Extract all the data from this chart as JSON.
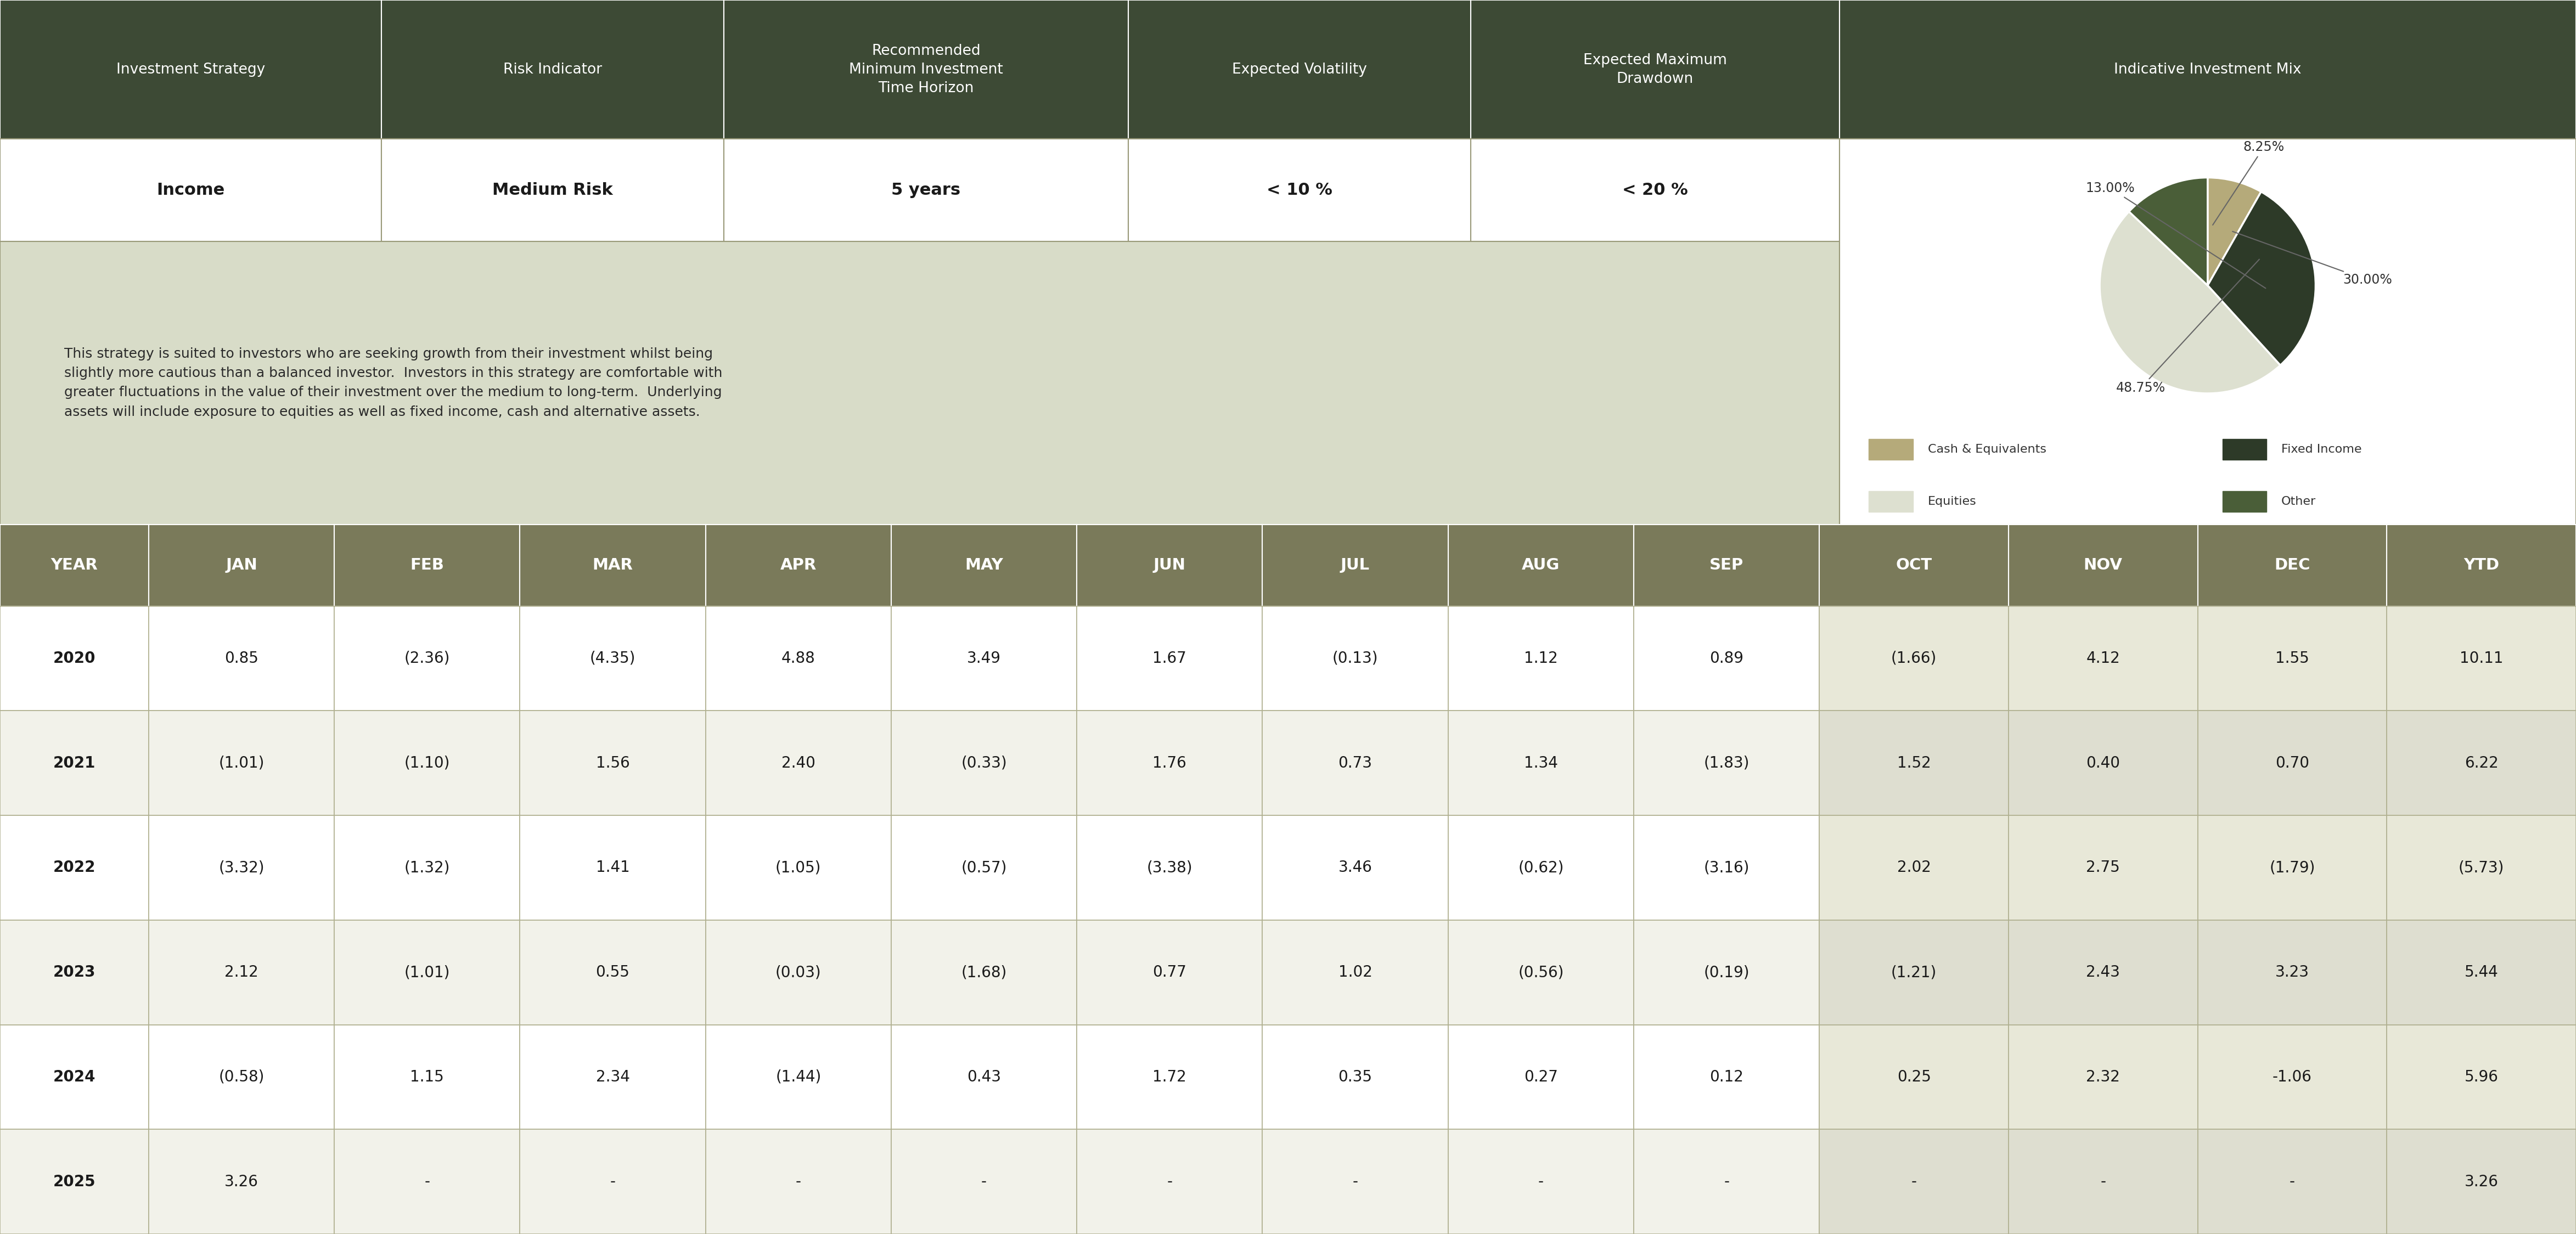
{
  "header_bg": "#3d4a35",
  "header_text_color": "#ffffff",
  "row_bg_white": "#ffffff",
  "desc_bg": "#d8dcc8",
  "border_color": "#9a9a7a",
  "header_row": [
    "Investment Strategy",
    "Risk Indicator",
    "Recommended\nMinimum Investment\nTime Horizon",
    "Expected Volatility",
    "Expected Maximum\nDrawdown",
    "Indicative Investment Mix"
  ],
  "info_row": [
    "Income",
    "Medium Risk",
    "5 years",
    "< 10 %",
    "< 20 %"
  ],
  "description": "This strategy is suited to investors who are seeking growth from their investment whilst being\nslightly more cautious than a balanced investor.  Investors in this strategy are comfortable with\ngreater fluctuations in the value of their investment over the medium to long-term.  Underlying\nassets will include exposure to equities as well as fixed income, cash and alternative assets.",
  "pie_labels": [
    "Cash & Equivalents",
    "Fixed Income",
    "Equities",
    "Other"
  ],
  "pie_sizes": [
    8.25,
    30.0,
    48.75,
    13.0
  ],
  "pie_colors": [
    "#b5aa7a",
    "#2d3a28",
    "#dde0d0",
    "#4a5e38"
  ],
  "pie_label_texts": [
    "8.25%",
    "30.00%",
    "48.75%",
    "13.00%"
  ],
  "table_header": [
    "YEAR",
    "JAN",
    "FEB",
    "MAR",
    "APR",
    "MAY",
    "JUN",
    "JUL",
    "AUG",
    "SEP",
    "OCT",
    "NOV",
    "DEC",
    "YTD"
  ],
  "table_data": [
    [
      "2020",
      "0.85",
      "(2.36)",
      "(4.35)",
      "4.88",
      "3.49",
      "1.67",
      "(0.13)",
      "1.12",
      "0.89",
      "(1.66)",
      "4.12",
      "1.55",
      "10.11"
    ],
    [
      "2021",
      "(1.01)",
      "(1.10)",
      "1.56",
      "2.40",
      "(0.33)",
      "1.76",
      "0.73",
      "1.34",
      "(1.83)",
      "1.52",
      "0.40",
      "0.70",
      "6.22"
    ],
    [
      "2022",
      "(3.32)",
      "(1.32)",
      "1.41",
      "(1.05)",
      "(0.57)",
      "(3.38)",
      "3.46",
      "(0.62)",
      "(3.16)",
      "2.02",
      "2.75",
      "(1.79)",
      "(5.73)"
    ],
    [
      "2023",
      "2.12",
      "(1.01)",
      "0.55",
      "(0.03)",
      "(1.68)",
      "0.77",
      "1.02",
      "(0.56)",
      "(0.19)",
      "(1.21)",
      "2.43",
      "3.23",
      "5.44"
    ],
    [
      "2024",
      "(0.58)",
      "1.15",
      "2.34",
      "(1.44)",
      "0.43",
      "1.72",
      "0.35",
      "0.27",
      "0.12",
      "0.25",
      "2.32",
      "-1.06",
      "5.96"
    ],
    [
      "2025",
      "3.26",
      "-",
      "-",
      "-",
      "-",
      "-",
      "-",
      "-",
      "-",
      "-",
      "-",
      "-",
      "3.26"
    ]
  ],
  "table_header_bg": "#7a7a5a",
  "table_row_bg1": "#ffffff",
  "table_row_bg2": "#f2f2ea",
  "table_border": "#b0b090",
  "oct_nov_dec_ytd_bg1": "#e8e8d8",
  "oct_nov_dec_ytd_bg2": "#deded0"
}
